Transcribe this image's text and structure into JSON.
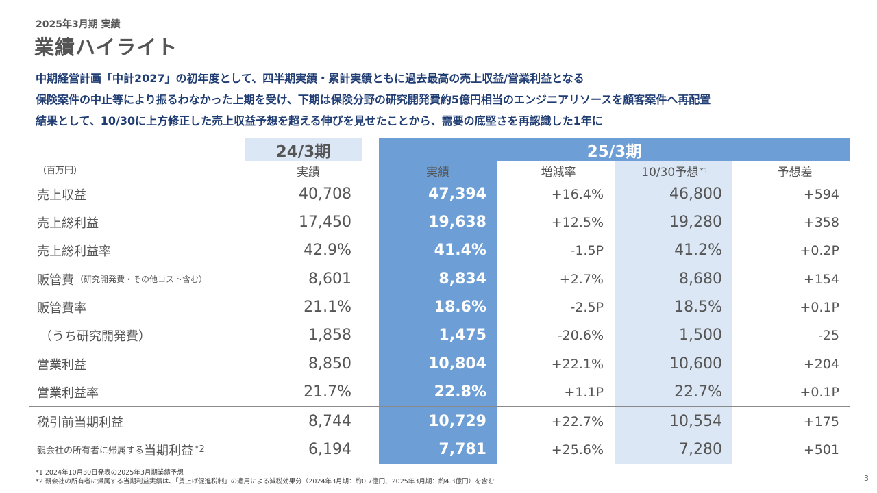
{
  "header": {
    "period": "2025年3月期 実績",
    "title": "業績ハイライト"
  },
  "summary": [
    "中期経営計画「中計2027」の初年度として、四半期実績・累計実績ともに過去最高の売上収益/営業利益となる",
    "保険案件の中止等により振るわなかった上期を受け、下期は保険分野の研究開発費約5億円相当のエンジニアリソースを顧客案件へ再配置",
    "結果として、10/30に上方修正した売上収益予想を超える伸びを見せたことから、需要の底堅さを再認識した1年に"
  ],
  "table": {
    "prev_period": "24/3期",
    "cur_period": "25/3期",
    "unit": "（百万円）",
    "columns": {
      "prev_actual": "実績",
      "actual": "実績",
      "change": "増減率",
      "forecast": "10/30予想",
      "forecast_mark": "*1",
      "diff": "予想差"
    },
    "rows": [
      {
        "label": "売上収益",
        "prev": "40,708",
        "actual": "47,394",
        "change": "+16.4%",
        "forecast": "46,800",
        "diff": "+594"
      },
      {
        "label": "売上総利益",
        "prev": "17,450",
        "actual": "19,638",
        "change": "+12.5%",
        "forecast": "19,280",
        "diff": "+358"
      },
      {
        "label": "売上総利益率",
        "prev": "42.9%",
        "actual": "41.4%",
        "change": "-1.5P",
        "forecast": "41.2%",
        "diff": "+0.2P"
      },
      {
        "label": "販管費",
        "note": "（研究開発費・その他コスト含む）",
        "prev": "8,601",
        "actual": "8,834",
        "change": "+2.7%",
        "forecast": "8,680",
        "diff": "+154"
      },
      {
        "label": "販管費率",
        "prev": "21.1%",
        "actual": "18.6%",
        "change": "-2.5P",
        "forecast": "18.5%",
        "diff": "+0.1P"
      },
      {
        "label": "（うち研究開発費）",
        "prev": "1,858",
        "actual": "1,475",
        "change": "-20.6%",
        "forecast": "1,500",
        "diff": "-25"
      },
      {
        "label": "営業利益",
        "prev": "8,850",
        "actual": "10,804",
        "change": "+22.1%",
        "forecast": "10,600",
        "diff": "+204"
      },
      {
        "label": "営業利益率",
        "prev": "21.7%",
        "actual": "22.8%",
        "change": "+1.1P",
        "forecast": "22.7%",
        "diff": "+0.1P"
      },
      {
        "label": "税引前当期利益",
        "prev": "8,744",
        "actual": "10,729",
        "change": "+22.7%",
        "forecast": "10,554",
        "diff": "+175"
      },
      {
        "label_prefix": "親会社の所有者に帰属する",
        "label": "当期利益",
        "label_mark": "*2",
        "prev": "6,194",
        "actual": "7,781",
        "change": "+25.6%",
        "forecast": "7,280",
        "diff": "+501"
      }
    ]
  },
  "footnotes": [
    "*1 2024年10月30日発表の2025年3月期業績予想",
    "*2 親会社の所有者に帰属する当期利益実績は、「賃上げ促進税制」の適用による減税効果分（2024年3月期：約0.7億円、2025年3月期：約4.3億円）を含む"
  ],
  "page_number": "3"
}
